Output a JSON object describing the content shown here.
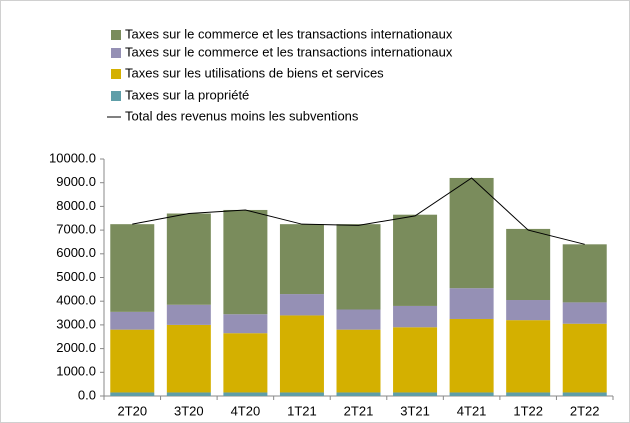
{
  "chart_data": {
    "type": "bar",
    "categories": [
      "2T20",
      "3T20",
      "4T20",
      "1T21",
      "2T21",
      "3T21",
      "4T21",
      "1T22",
      "2T22"
    ],
    "series": [
      {
        "name": "Taxes sur la propriété",
        "color": "#5f9ea8",
        "values": [
          150,
          150,
          150,
          150,
          150,
          150,
          150,
          150,
          150
        ]
      },
      {
        "name": "Taxes sur les utilisations de biens et services",
        "color": "#d4b000",
        "values": [
          2650,
          2850,
          2500,
          3250,
          2650,
          2750,
          3100,
          3050,
          2900
        ]
      },
      {
        "name": "Taxes sur le commerce et les transactions internationaux",
        "color": "#9590b5",
        "values": [
          750,
          850,
          800,
          900,
          850,
          900,
          1300,
          850,
          900
        ]
      },
      {
        "name": "Taxes sur le commerce et les transactions internationaux",
        "color": "#7a8c5c",
        "values": [
          3700,
          3850,
          4400,
          2950,
          3600,
          3850,
          4650,
          3000,
          2450
        ]
      },
      {
        "name": "Total des revenus moins les subventions",
        "type": "line",
        "color": "#000000",
        "values": [
          7250,
          7700,
          7850,
          7250,
          7200,
          7600,
          9200,
          7000,
          6400
        ]
      }
    ],
    "ylim": [
      0,
      10000
    ],
    "yticks": [
      {
        "value": 0,
        "label": "0.0"
      },
      {
        "value": 1000,
        "label": "1000.0"
      },
      {
        "value": 2000,
        "label": "2000.0"
      },
      {
        "value": 3000,
        "label": "3000.0"
      },
      {
        "value": 4000,
        "label": "4000.0"
      },
      {
        "value": 5000,
        "label": "5000.0"
      },
      {
        "value": 6000,
        "label": "6000.0"
      },
      {
        "value": 7000,
        "label": "7000.0"
      },
      {
        "value": 8000,
        "label": "8000.0"
      },
      {
        "value": 9000,
        "label": "9000.0"
      },
      {
        "value": 10000,
        "label": "10000.0"
      }
    ]
  }
}
